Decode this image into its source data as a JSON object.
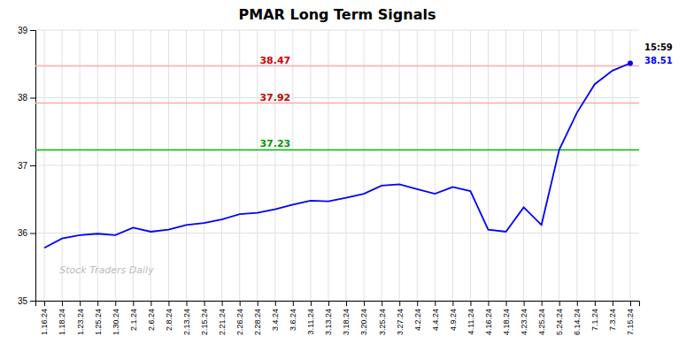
{
  "chart_data": {
    "type": "line",
    "title": "PMAR Long Term Signals",
    "categories": [
      "1.16.24",
      "1.18.24",
      "1.23.24",
      "1.25.24",
      "1.30.24",
      "2.1.24",
      "2.6.24",
      "2.8.24",
      "2.13.24",
      "2.15.24",
      "2.21.24",
      "2.26.24",
      "2.28.24",
      "3.4.24",
      "3.6.24",
      "3.11.24",
      "3.13.24",
      "3.18.24",
      "3.20.24",
      "3.25.24",
      "3.27.24",
      "4.2.24",
      "4.4.24",
      "4.9.24",
      "4.11.24",
      "4.16.24",
      "4.18.24",
      "4.23.24",
      "4.25.24",
      "5.24.24",
      "6.14.24",
      "7.1.24",
      "7.3.24",
      "7.15.24"
    ],
    "values": [
      35.78,
      35.92,
      35.97,
      35.99,
      35.97,
      36.08,
      36.02,
      36.05,
      36.12,
      36.15,
      36.2,
      36.28,
      36.3,
      36.35,
      36.42,
      36.48,
      36.47,
      36.52,
      36.58,
      36.7,
      36.72,
      36.65,
      36.58,
      36.68,
      36.62,
      36.05,
      36.02,
      36.38,
      36.12,
      37.23,
      37.78,
      38.2,
      38.4,
      38.51
    ],
    "color": "blue",
    "ylim": [
      35.0,
      39.0
    ],
    "yticks": [
      35,
      36,
      37,
      38,
      39
    ],
    "grid": true,
    "reference_lines": [
      {
        "value": 38.47,
        "label": "38.47",
        "color": "#ffaaaa",
        "label_color": "#cc0000"
      },
      {
        "value": 37.92,
        "label": "37.92",
        "color": "#ffaaaa",
        "label_color": "#cc0000"
      },
      {
        "value": 37.23,
        "label": "37.23",
        "color": "#00bb00",
        "label_color": "#009900"
      }
    ],
    "annotations": [
      {
        "text": "15:59",
        "color": "black"
      },
      {
        "text": "38.51",
        "color": "blue"
      }
    ],
    "watermark": "Stock Traders Daily",
    "watermark_color": "#bbbbbb"
  }
}
